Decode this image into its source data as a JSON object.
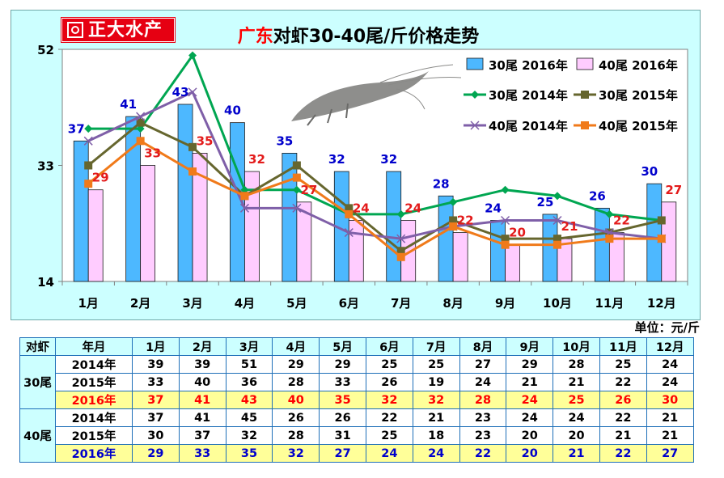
{
  "brand": {
    "text": "正大水产"
  },
  "chart_data": {
    "type": "bar+line",
    "title_prefix": "广东",
    "title_rest": "对虾30-40尾/斤价格走势",
    "categories": [
      "1月",
      "2月",
      "3月",
      "4月",
      "5月",
      "6月",
      "7月",
      "8月",
      "9月",
      "10月",
      "11月",
      "12月"
    ],
    "ylim": [
      14,
      52
    ],
    "yticks": [
      14,
      33,
      52
    ],
    "bar_series": [
      {
        "name": "30尾 2016年",
        "color": "#4db8ff",
        "label_color": "#0000cc",
        "values": [
          37,
          41,
          43,
          40,
          35,
          32,
          32,
          28,
          24,
          25,
          26,
          30
        ]
      },
      {
        "name": "40尾 2016年",
        "color": "#ffccff",
        "label_color": "#e31b1b",
        "values": [
          29,
          33,
          35,
          32,
          27,
          24,
          24,
          22,
          20,
          21,
          22,
          27
        ]
      }
    ],
    "line_series": [
      {
        "name": "30尾 2014年",
        "color": "#00a651",
        "marker": "diamond",
        "values": [
          39,
          39,
          51,
          29,
          29,
          25,
          25,
          27,
          29,
          28,
          25,
          24
        ]
      },
      {
        "name": "30尾 2015年",
        "color": "#66662e",
        "marker": "square",
        "values": [
          33,
          40,
          36,
          28,
          33,
          26,
          19,
          24,
          21,
          21,
          22,
          24
        ]
      },
      {
        "name": "40尾 2014年",
        "color": "#7f5fa8",
        "marker": "x",
        "values": [
          37,
          41,
          45,
          26,
          26,
          22,
          21,
          23,
          24,
          24,
          22,
          21
        ]
      },
      {
        "name": "40尾 2015年",
        "color": "#f07a1a",
        "marker": "square",
        "values": [
          30,
          37,
          32,
          28,
          31,
          25,
          18,
          23,
          20,
          20,
          21,
          21
        ]
      }
    ],
    "legend_position": "top-right"
  },
  "unit_label": "单位：元/斤",
  "table": {
    "header": [
      "对虾",
      "年月",
      "1月",
      "2月",
      "3月",
      "4月",
      "5月",
      "6月",
      "7月",
      "8月",
      "9月",
      "10月",
      "11月",
      "12月"
    ],
    "groups": [
      {
        "name": "30尾",
        "rows": [
          {
            "year": "2014年",
            "values": [
              "39",
              "39",
              "51",
              "29",
              "29",
              "25",
              "25",
              "27",
              "29",
              "28",
              "25",
              "24"
            ]
          },
          {
            "year": "2015年",
            "values": [
              "33",
              "40",
              "36",
              "28",
              "33",
              "26",
              "19",
              "24",
              "21",
              "21",
              "22",
              "24"
            ]
          },
          {
            "year": "2016年",
            "values": [
              "37",
              "41",
              "43",
              "40",
              "35",
              "32",
              "32",
              "28",
              "24",
              "25",
              "26",
              "30"
            ]
          }
        ]
      },
      {
        "name": "40尾",
        "rows": [
          {
            "year": "2014年",
            "values": [
              "37",
              "41",
              "45",
              "26",
              "26",
              "22",
              "21",
              "23",
              "24",
              "24",
              "22",
              "21"
            ]
          },
          {
            "year": "2015年",
            "values": [
              "30",
              "37",
              "32",
              "28",
              "31",
              "25",
              "18",
              "23",
              "20",
              "20",
              "21",
              "21"
            ]
          },
          {
            "year": "2016年",
            "values": [
              "29",
              "33",
              "35",
              "32",
              "27",
              "24",
              "24",
              "22",
              "20",
              "21",
              "22",
              "27"
            ]
          }
        ]
      }
    ]
  }
}
